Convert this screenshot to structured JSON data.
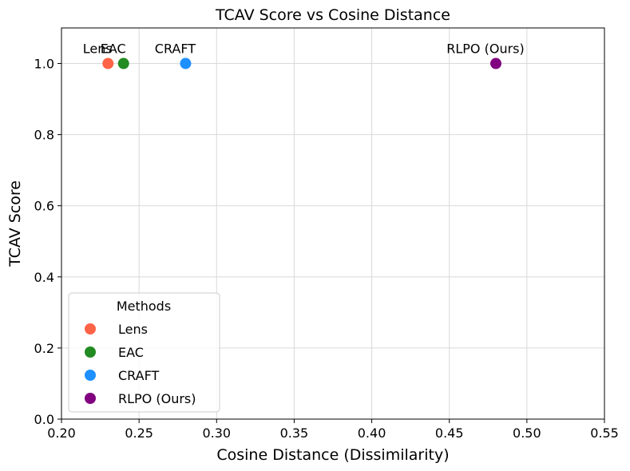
{
  "chart_data": {
    "type": "scatter",
    "title": "TCAV Score vs Cosine Distance",
    "xlabel": "Cosine Distance (Dissimilarity)",
    "ylabel": "TCAV Score",
    "xlim": [
      0.2,
      0.55
    ],
    "ylim": [
      0.0,
      1.1
    ],
    "xticks": [
      "0.20",
      "0.25",
      "0.30",
      "0.35",
      "0.40",
      "0.45",
      "0.50",
      "0.55"
    ],
    "yticks": [
      "0.0",
      "0.2",
      "0.4",
      "0.6",
      "0.8",
      "1.0"
    ],
    "grid": true,
    "legend": {
      "title": "Methods",
      "position": "lower-left"
    },
    "series": [
      {
        "name": "Lens",
        "x": 0.23,
        "y": 1.0,
        "color": "#FF6347"
      },
      {
        "name": "EAC",
        "x": 0.24,
        "y": 1.0,
        "color": "#228B22"
      },
      {
        "name": "CRAFT",
        "x": 0.28,
        "y": 1.0,
        "color": "#1E90FF"
      },
      {
        "name": "RLPO (Ours)",
        "x": 0.48,
        "y": 1.0,
        "color": "#800080"
      }
    ]
  }
}
